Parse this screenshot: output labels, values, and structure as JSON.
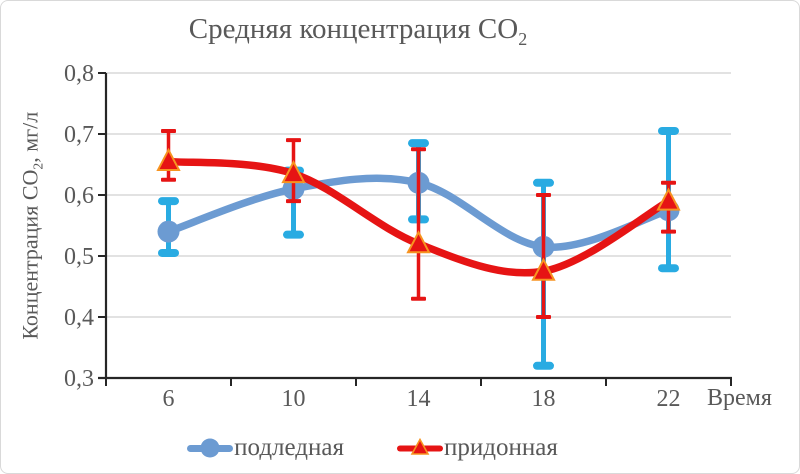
{
  "title": {
    "main": "Средняя концентрация CO",
    "sub": "2"
  },
  "y_axis": {
    "label_main": "Концентрация CO",
    "label_sub": "2",
    "label_suffix": ", мг/л",
    "tick_labels": [
      "0,8",
      "0,7",
      "0,6",
      "0,5",
      "0,4",
      "0,3"
    ]
  },
  "x_axis": {
    "label": "Время",
    "tick_labels": [
      "6",
      "10",
      "14",
      "18",
      "22"
    ]
  },
  "colors": {
    "background": "#FFFFFF",
    "border": "#D9D9D9",
    "grid": "#D9D9D9",
    "axis": "#262626",
    "text": "#595959",
    "series1": "#6C9BD2",
    "series1_error": "#29ABE2",
    "series2": "#E61414",
    "series2_marker_stroke": "#F79420"
  },
  "chart_data": {
    "type": "line",
    "title": "Средняя концентрация CO2",
    "xlabel": "Время",
    "ylabel": "Концентрация CO2, мг/л",
    "ylim": [
      0.3,
      0.8
    ],
    "grid": true,
    "smooth": true,
    "legend_position": "bottom",
    "x": [
      6,
      10,
      14,
      18,
      22
    ],
    "series": [
      {
        "name": "подледная",
        "marker": "circle",
        "color": "#6C9BD2",
        "error_color": "#29ABE2",
        "cap_style": "pill",
        "values": [
          0.54,
          0.61,
          0.62,
          0.515,
          0.575
        ],
        "error_low": [
          0.505,
          0.535,
          0.56,
          0.32,
          0.48
        ],
        "error_high": [
          0.59,
          0.64,
          0.685,
          0.62,
          0.705
        ]
      },
      {
        "name": "придонная",
        "marker": "triangle",
        "color": "#E61414",
        "error_color": "#E61414",
        "marker_stroke": "#F79420",
        "cap_style": "flat",
        "values": [
          0.655,
          0.635,
          0.52,
          0.475,
          0.59
        ],
        "error_low": [
          0.625,
          0.59,
          0.43,
          0.4,
          0.54
        ],
        "error_high": [
          0.705,
          0.69,
          0.675,
          0.6,
          0.62
        ]
      }
    ]
  }
}
